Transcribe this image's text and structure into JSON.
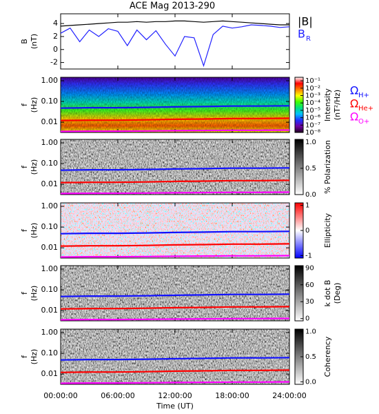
{
  "chart_data": [
    {
      "type": "line",
      "title": "ACE Mag 2013-290",
      "ylabel": "B",
      "ylabel_unit": "(nT)",
      "xlim": [
        0,
        24
      ],
      "ylim": [
        -3,
        5.5
      ],
      "yticks": [
        -2,
        0,
        2,
        4
      ],
      "x": [
        0,
        1,
        2,
        3,
        4,
        5,
        6,
        7,
        8,
        9,
        10,
        11,
        12,
        13,
        14,
        15,
        16,
        17,
        18,
        19,
        20,
        21,
        22,
        23,
        24
      ],
      "series": [
        {
          "name": "|B|",
          "color": "#000000",
          "values": [
            3.6,
            3.7,
            3.8,
            3.9,
            4.0,
            4.1,
            4.2,
            4.2,
            4.3,
            4.2,
            4.3,
            4.3,
            4.4,
            4.4,
            4.3,
            4.2,
            4.3,
            4.4,
            4.3,
            4.2,
            4.1,
            4.0,
            3.9,
            3.8,
            3.8
          ]
        },
        {
          "name": "B",
          "name_sub": "R",
          "color": "#2020ff",
          "values": [
            2.5,
            3.3,
            1.2,
            3.0,
            2.0,
            3.2,
            2.8,
            0.6,
            3.0,
            1.5,
            2.9,
            0.8,
            -1.0,
            2.0,
            1.8,
            -2.5,
            2.3,
            3.6,
            3.3,
            3.5,
            3.8,
            3.7,
            3.6,
            3.4,
            3.5
          ]
        }
      ]
    },
    {
      "type": "spectrogram",
      "ylabel": "f",
      "ylabel_unit": "(Hz)",
      "log_y": true,
      "legend": true,
      "xlim": [
        0,
        24
      ],
      "ylim": [
        0.0032,
        1.47
      ],
      "yticks": [
        {
          "value": 1,
          "label": "1.00"
        },
        {
          "value": 0.1,
          "label": "0.10"
        },
        0.01
      ],
      "background": "rainbow",
      "colorbar": {
        "label": "Intensity",
        "unit": "(nT²/Hz)",
        "log": true,
        "lim": [
          1e-08,
          0.3
        ],
        "ticks": [
          {
            "value": 0.1,
            "label": "10⁻¹"
          },
          {
            "value": 0.01,
            "label": "10⁻²"
          },
          {
            "value": 0.001,
            "label": "10⁻³"
          },
          {
            "value": 0.0001,
            "label": "10⁻⁴"
          },
          {
            "value": 1e-05,
            "label": "10⁻⁵"
          },
          {
            "value": 1e-06,
            "label": "10⁻⁶"
          },
          {
            "value": 1e-07,
            "label": "10⁻⁷"
          },
          {
            "value": 1e-08,
            "label": "10⁻⁸"
          }
        ],
        "colors": [
          "#200020",
          "#7000a0",
          "#2030ff",
          "#00c0ff",
          "#00e080",
          "#40ff00",
          "#ffff00",
          "#ff8000",
          "#ff0000",
          "#ffffff"
        ]
      },
      "x": [
        0,
        3,
        6,
        9,
        12,
        15,
        18,
        21,
        24
      ],
      "series": [
        {
          "name": "Ω",
          "name_sub": "H+",
          "color": "#1010ff",
          "values": [
            0.048,
            0.05,
            0.05,
            0.052,
            0.055,
            0.057,
            0.06,
            0.06,
            0.062
          ]
        },
        {
          "name": "Ω",
          "name_sub": "He+",
          "color": "#ff0000",
          "values": [
            0.012,
            0.0125,
            0.0125,
            0.013,
            0.0138,
            0.0143,
            0.015,
            0.015,
            0.0155
          ]
        },
        {
          "name": "Ω",
          "name_sub": "O+",
          "color": "#ff00ff",
          "values": [
            0.0036,
            0.0037,
            0.0037,
            0.0038,
            0.0039,
            0.004,
            0.0041,
            0.0041,
            0.0042
          ]
        }
      ]
    },
    {
      "type": "spectrogram",
      "ylabel": "f",
      "ylabel_unit": "(Hz)",
      "log_y": true,
      "xlim": [
        0,
        24
      ],
      "ylim": [
        0.0032,
        1.47
      ],
      "yticks": [
        {
          "value": 1,
          "label": "1.00"
        },
        {
          "value": 0.1,
          "label": "0.10"
        },
        0.01
      ],
      "background": "gray",
      "colorbar": {
        "label": "% Polarization",
        "log": false,
        "lim": [
          0,
          1.05
        ],
        "ticks": [
          {
            "value": 1,
            "label": "1.0"
          },
          0.5,
          {
            "value": 0,
            "label": "0.0"
          }
        ],
        "colors": [
          "#ffffff",
          "#000000"
        ]
      },
      "x": [
        0,
        3,
        6,
        9,
        12,
        15,
        18,
        21,
        24
      ],
      "series": [
        {
          "color": "#1010ff",
          "values": [
            0.048,
            0.05,
            0.05,
            0.052,
            0.055,
            0.057,
            0.06,
            0.06,
            0.062
          ]
        },
        {
          "color": "#ff0000",
          "values": [
            0.012,
            0.0125,
            0.0125,
            0.013,
            0.0138,
            0.0143,
            0.015,
            0.015,
            0.0155
          ]
        },
        {
          "color": "#ff00ff",
          "values": [
            0.0036,
            0.0037,
            0.0037,
            0.0038,
            0.0039,
            0.004,
            0.0041,
            0.0041,
            0.0042
          ]
        }
      ]
    },
    {
      "type": "spectrogram",
      "ylabel": "f",
      "ylabel_unit": "(Hz)",
      "log_y": true,
      "xlim": [
        0,
        24
      ],
      "ylim": [
        0.0032,
        1.47
      ],
      "yticks": [
        {
          "value": 1,
          "label": "1.00"
        },
        {
          "value": 0.1,
          "label": "0.10"
        },
        0.01
      ],
      "background": "redblue",
      "colorbar": {
        "label": "Ellipticity",
        "log": false,
        "lim": [
          -1.1,
          1.1
        ],
        "ticks": [
          1,
          0,
          -1
        ],
        "colors": [
          "#0000ff",
          "#ffffff",
          "#ff0000"
        ]
      },
      "x": [
        0,
        3,
        6,
        9,
        12,
        15,
        18,
        21,
        24
      ],
      "series": [
        {
          "color": "#1010ff",
          "values": [
            0.048,
            0.05,
            0.05,
            0.052,
            0.055,
            0.057,
            0.06,
            0.06,
            0.062
          ]
        },
        {
          "color": "#ff0000",
          "values": [
            0.012,
            0.0125,
            0.0125,
            0.013,
            0.0138,
            0.0143,
            0.015,
            0.015,
            0.0155
          ]
        },
        {
          "color": "#ff00ff",
          "values": [
            0.0036,
            0.0037,
            0.0037,
            0.0038,
            0.0039,
            0.004,
            0.0041,
            0.0041,
            0.0042
          ]
        }
      ]
    },
    {
      "type": "spectrogram",
      "ylabel": "f",
      "ylabel_unit": "(Hz)",
      "log_y": true,
      "xlim": [
        0,
        24
      ],
      "ylim": [
        0.0032,
        1.47
      ],
      "yticks": [
        {
          "value": 1,
          "label": "1.00"
        },
        {
          "value": 0.1,
          "label": "0.10"
        },
        0.01
      ],
      "background": "gray",
      "colorbar": {
        "label": "k dot B",
        "unit": "(Deg)",
        "log": false,
        "lim": [
          -4,
          94
        ],
        "ticks": [
          90,
          60,
          30,
          0
        ],
        "colors": [
          "#ffffff",
          "#000000"
        ]
      },
      "x": [
        0,
        3,
        6,
        9,
        12,
        15,
        18,
        21,
        24
      ],
      "series": [
        {
          "color": "#1010ff",
          "values": [
            0.048,
            0.05,
            0.05,
            0.052,
            0.055,
            0.057,
            0.06,
            0.06,
            0.062
          ]
        },
        {
          "color": "#ff0000",
          "values": [
            0.012,
            0.0125,
            0.0125,
            0.013,
            0.0138,
            0.0143,
            0.015,
            0.015,
            0.0155
          ]
        },
        {
          "color": "#ff00ff",
          "values": [
            0.0036,
            0.0037,
            0.0037,
            0.0038,
            0.0039,
            0.004,
            0.0041,
            0.0041,
            0.0042
          ]
        }
      ]
    },
    {
      "type": "spectrogram",
      "ylabel": "f",
      "ylabel_unit": "(Hz)",
      "log_y": true,
      "xlim": [
        0,
        24
      ],
      "ylim": [
        0.0032,
        1.47
      ],
      "yticks": [
        {
          "value": 1,
          "label": "1.00"
        },
        {
          "value": 0.1,
          "label": "0.10"
        },
        0.01
      ],
      "background": "gray",
      "colorbar": {
        "label": "Coherency",
        "log": false,
        "lim": [
          -0.05,
          1.05
        ],
        "ticks": [
          {
            "value": 1,
            "label": "1.0"
          },
          0.5,
          {
            "value": 0,
            "label": "0.0"
          }
        ],
        "colors": [
          "#ffffff",
          "#000000"
        ]
      },
      "x": [
        0,
        3,
        6,
        9,
        12,
        15,
        18,
        21,
        24
      ],
      "series": [
        {
          "color": "#1010ff",
          "values": [
            0.048,
            0.05,
            0.05,
            0.052,
            0.055,
            0.057,
            0.06,
            0.06,
            0.062
          ]
        },
        {
          "color": "#ff0000",
          "values": [
            0.012,
            0.0125,
            0.0125,
            0.013,
            0.0138,
            0.0143,
            0.015,
            0.015,
            0.0155
          ]
        },
        {
          "color": "#ff00ff",
          "values": [
            0.0036,
            0.0037,
            0.0037,
            0.0038,
            0.0039,
            0.004,
            0.0041,
            0.0041,
            0.0042
          ]
        }
      ],
      "xlabel": "Time (UT)",
      "xticks": [
        {
          "value": 0,
          "label": "00:00:00"
        },
        {
          "value": 6,
          "label": "06:00:00"
        },
        {
          "value": 12,
          "label": "12:00:00"
        },
        {
          "value": 18,
          "label": "18:00:00"
        },
        {
          "value": 24,
          "label": "24:00:00"
        }
      ]
    }
  ]
}
